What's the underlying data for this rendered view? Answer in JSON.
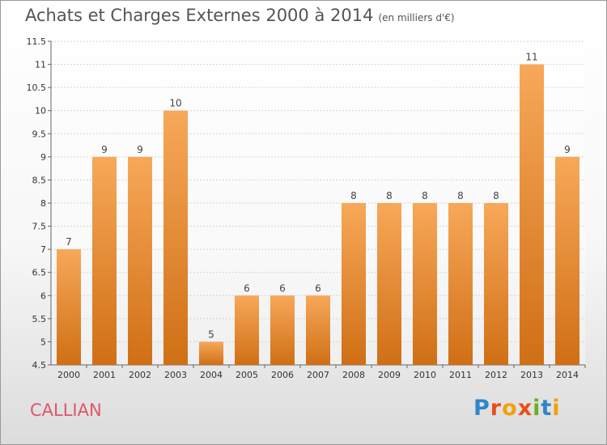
{
  "page": {
    "title": "Achats et Charges Externes 2000 à 2014",
    "unit": "(en milliers d'€)",
    "city": "CALLIAN",
    "logo": {
      "text": "Proxiti",
      "colors": [
        "#2e86c8",
        "#e94e1b",
        "#f2a10a",
        "#e94e1b",
        "#6ab023",
        "#2e86c8",
        "#f2a10a"
      ]
    }
  },
  "chart_data": {
    "type": "bar",
    "title": "Achats et Charges Externes 2000 à 2014",
    "subtitle": "(en milliers d'€)",
    "categories": [
      "2000",
      "2001",
      "2002",
      "2003",
      "2004",
      "2005",
      "2006",
      "2007",
      "2008",
      "2009",
      "2010",
      "2011",
      "2012",
      "2013",
      "2014"
    ],
    "values": [
      7,
      9,
      9,
      10,
      5,
      6,
      6,
      6,
      8,
      8,
      8,
      8,
      8,
      11,
      9
    ],
    "data_labels": [
      "7",
      "9",
      "9",
      "10",
      "5",
      "6",
      "6",
      "6",
      "8",
      "8",
      "8",
      "8",
      "8",
      "11",
      "9"
    ],
    "ylim": [
      4.5,
      11.5
    ],
    "yticks": [
      4.5,
      5,
      5.5,
      6,
      6.5,
      7,
      7.5,
      8,
      8.5,
      9,
      9.5,
      10,
      10.5,
      11,
      11.5
    ],
    "grid": true,
    "bar_color": "#e9882f"
  }
}
